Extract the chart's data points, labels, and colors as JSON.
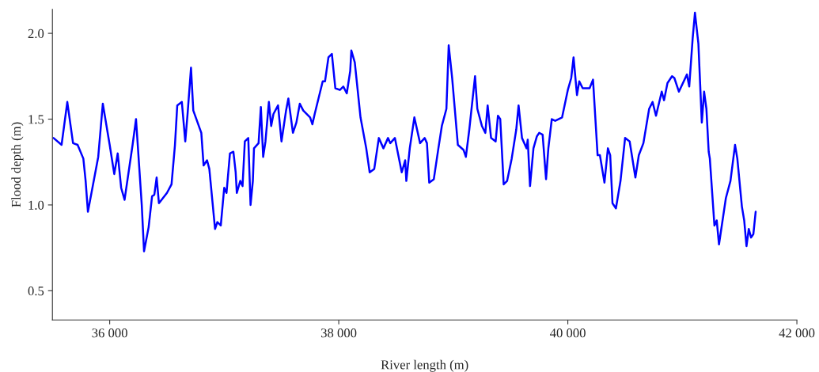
{
  "chart_data": {
    "type": "line",
    "xlabel": "River length (m)",
    "ylabel": "Flood depth (m)",
    "xlim": [
      35500,
      42000
    ],
    "ylim": [
      0.33,
      2.14
    ],
    "xticks": [
      {
        "value": 36000,
        "label": "36 000"
      },
      {
        "value": 38000,
        "label": "38 000"
      },
      {
        "value": 40000,
        "label": "40 000"
      },
      {
        "value": 42000,
        "label": "42 000"
      }
    ],
    "yticks": [
      {
        "value": 0.5,
        "label": "0.5"
      },
      {
        "value": 1.0,
        "label": "1.0"
      },
      {
        "value": 1.5,
        "label": "1.5"
      },
      {
        "value": 2.0,
        "label": "2.0"
      }
    ],
    "grid": false,
    "marker": "none",
    "line_style": "solid",
    "x": [
      35510,
      35580,
      35630,
      35680,
      35720,
      35770,
      35790,
      35810,
      35900,
      35940,
      36000,
      36040,
      36070,
      36100,
      36130,
      36200,
      36230,
      36280,
      36300,
      36340,
      36370,
      36390,
      36410,
      36430,
      36500,
      36540,
      36570,
      36590,
      36630,
      36660,
      36680,
      36710,
      36730,
      36800,
      36820,
      36850,
      36870,
      36920,
      36940,
      36970,
      37000,
      37020,
      37050,
      37080,
      37100,
      37110,
      37140,
      37160,
      37180,
      37210,
      37230,
      37250,
      37260,
      37300,
      37320,
      37340,
      37360,
      37390,
      37410,
      37430,
      37470,
      37500,
      37540,
      37560,
      37600,
      37630,
      37660,
      37690,
      37750,
      37770,
      37790,
      37860,
      37880,
      37910,
      37940,
      37970,
      38010,
      38040,
      38070,
      38100,
      38110,
      38140,
      38190,
      38240,
      38270,
      38310,
      38350,
      38390,
      38430,
      38450,
      38490,
      38520,
      38550,
      38580,
      38590,
      38620,
      38660,
      38710,
      38750,
      38770,
      38790,
      38830,
      38870,
      38900,
      38940,
      38960,
      38990,
      39040,
      39090,
      39110,
      39140,
      39190,
      39210,
      39250,
      39280,
      39300,
      39330,
      39370,
      39390,
      39410,
      39440,
      39470,
      39510,
      39550,
      39570,
      39600,
      39640,
      39650,
      39670,
      39700,
      39730,
      39750,
      39780,
      39810,
      39830,
      39860,
      39890,
      39950,
      40000,
      40030,
      40050,
      40080,
      40100,
      40130,
      40190,
      40220,
      40260,
      40280,
      40320,
      40350,
      40370,
      40390,
      40420,
      40460,
      40500,
      40540,
      40590,
      40620,
      40660,
      40710,
      40740,
      40770,
      40820,
      40840,
      40870,
      40910,
      40930,
      40970,
      41040,
      41060,
      41090,
      41110,
      41140,
      41170,
      41190,
      41210,
      41230,
      41240,
      41280,
      41300,
      41320,
      41380,
      41420,
      41460,
      41480,
      41520,
      41540,
      41560,
      41580,
      41600,
      41620,
      41640
    ],
    "series": [
      {
        "color": "#0000ff",
        "values": [
          1.39,
          1.35,
          1.6,
          1.36,
          1.35,
          1.27,
          1.14,
          0.96,
          1.28,
          1.59,
          1.35,
          1.18,
          1.3,
          1.1,
          1.03,
          1.35,
          1.5,
          1.0,
          0.73,
          0.87,
          1.05,
          1.06,
          1.16,
          1.01,
          1.07,
          1.12,
          1.35,
          1.58,
          1.6,
          1.37,
          1.53,
          1.8,
          1.55,
          1.42,
          1.23,
          1.26,
          1.21,
          0.86,
          0.9,
          0.88,
          1.1,
          1.07,
          1.3,
          1.31,
          1.19,
          1.07,
          1.14,
          1.11,
          1.37,
          1.39,
          1.0,
          1.14,
          1.33,
          1.36,
          1.57,
          1.28,
          1.37,
          1.6,
          1.46,
          1.53,
          1.58,
          1.37,
          1.55,
          1.62,
          1.42,
          1.48,
          1.59,
          1.55,
          1.51,
          1.47,
          1.53,
          1.72,
          1.72,
          1.86,
          1.88,
          1.68,
          1.67,
          1.69,
          1.65,
          1.78,
          1.9,
          1.83,
          1.51,
          1.33,
          1.19,
          1.21,
          1.39,
          1.33,
          1.39,
          1.36,
          1.39,
          1.29,
          1.19,
          1.26,
          1.14,
          1.33,
          1.51,
          1.36,
          1.39,
          1.36,
          1.13,
          1.15,
          1.33,
          1.46,
          1.56,
          1.93,
          1.74,
          1.35,
          1.32,
          1.28,
          1.44,
          1.75,
          1.56,
          1.46,
          1.42,
          1.58,
          1.39,
          1.37,
          1.52,
          1.5,
          1.12,
          1.14,
          1.27,
          1.44,
          1.58,
          1.39,
          1.33,
          1.38,
          1.11,
          1.33,
          1.4,
          1.42,
          1.41,
          1.15,
          1.33,
          1.5,
          1.49,
          1.51,
          1.67,
          1.74,
          1.86,
          1.64,
          1.72,
          1.68,
          1.68,
          1.73,
          1.29,
          1.29,
          1.13,
          1.33,
          1.29,
          1.01,
          0.98,
          1.14,
          1.39,
          1.37,
          1.16,
          1.29,
          1.36,
          1.56,
          1.6,
          1.52,
          1.66,
          1.61,
          1.71,
          1.75,
          1.74,
          1.66,
          1.76,
          1.69,
          1.97,
          2.12,
          1.94,
          1.48,
          1.66,
          1.56,
          1.31,
          1.27,
          0.88,
          0.91,
          0.77,
          1.04,
          1.14,
          1.35,
          1.27,
          0.99,
          0.91,
          0.76,
          0.86,
          0.81,
          0.83,
          0.96
        ]
      }
    ]
  }
}
